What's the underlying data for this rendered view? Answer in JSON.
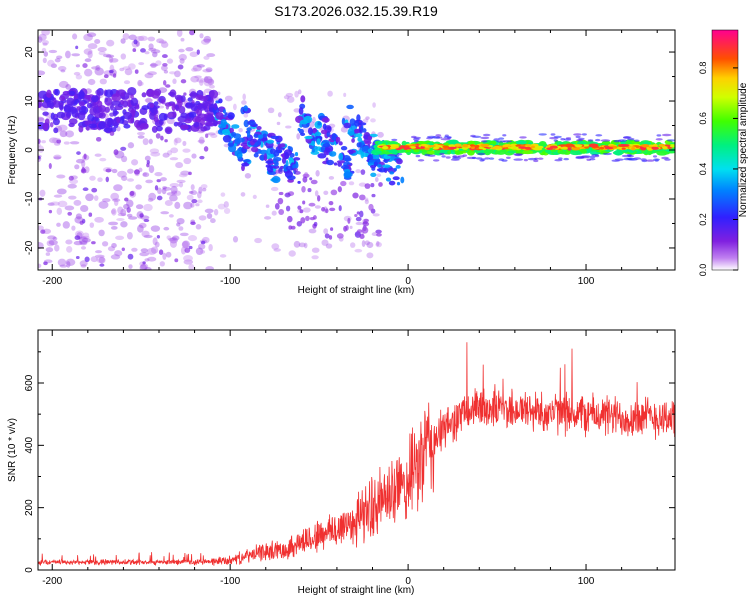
{
  "title": "S173.2026.032.15.39.R19",
  "chart_data": [
    {
      "type": "heatmap",
      "xlabel": "Height of straight line (km)",
      "ylabel": "Frequency (Hz)",
      "xlim": [
        -208,
        150
      ],
      "ylim": [
        -24.5,
        24.5
      ],
      "xticks": [
        -200,
        -100,
        0,
        100
      ],
      "yticks": [
        -20,
        -10,
        0,
        10,
        20
      ],
      "colorbar": {
        "label": "Normalized spectral amplitude",
        "range": [
          0,
          0.95
        ],
        "ticks": [
          0,
          0.2,
          0.4,
          0.6,
          0.8
        ],
        "tick_labels": [
          "0.0",
          "0.2",
          "0.4",
          "0.6",
          "0.8"
        ],
        "colormap_stops": [
          "#ffffff",
          "#a020f0",
          "#2020ff",
          "#00d0ff",
          "#00ff60",
          "#c0ff00",
          "#ffd000",
          "#ff4000",
          "#ff0080"
        ]
      },
      "regions": [
        {
          "name": "diffuse noise",
          "x_range": [
            -208,
            -110
          ],
          "freq_range": [
            -24.5,
            24.5
          ],
          "amplitude": 0.08
        },
        {
          "name": "carrier band low",
          "x_range": [
            -208,
            -110
          ],
          "freq_range": [
            3,
            12
          ],
          "amplitude": 0.12
        },
        {
          "name": "scintillation",
          "x_range": [
            -110,
            -15
          ],
          "freq_range": [
            -20,
            11
          ],
          "amplitude": 0.3
        },
        {
          "name": "carrier line",
          "x_range": [
            -15,
            150
          ],
          "freq_range": [
            0,
            2
          ],
          "amplitude": 0.8
        }
      ]
    },
    {
      "type": "line",
      "xlabel": "Height of straight line (km)",
      "ylabel": "SNR (10 * v/v)",
      "xlim": [
        -208,
        150
      ],
      "ylim": [
        0,
        770
      ],
      "xticks": [
        -200,
        -100,
        0,
        100
      ],
      "yticks": [
        0,
        200,
        400,
        600
      ],
      "color": "#f03030",
      "series": [
        {
          "name": "SNR",
          "x": [
            -208,
            -180,
            -150,
            -120,
            -100,
            -90,
            -80,
            -70,
            -60,
            -50,
            -40,
            -30,
            -20,
            -10,
            0,
            10,
            20,
            30,
            40,
            50,
            60,
            80,
            100,
            120,
            150
          ],
          "values": [
            25,
            25,
            25,
            25,
            30,
            45,
            60,
            65,
            90,
            110,
            130,
            160,
            200,
            240,
            280,
            380,
            450,
            500,
            520,
            520,
            515,
            505,
            500,
            490,
            490
          ]
        }
      ]
    }
  ]
}
